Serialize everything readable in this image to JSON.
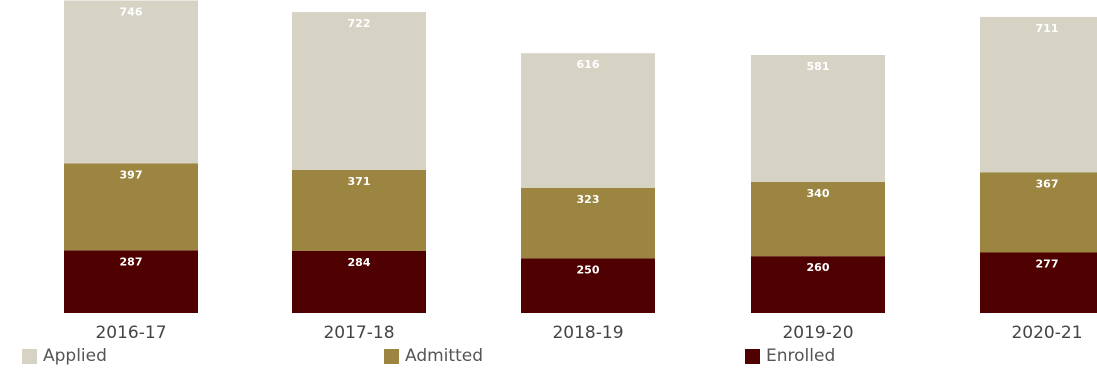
{
  "chart_data": {
    "type": "bar",
    "stacked": true,
    "categories": [
      "2016-17",
      "2017-18",
      "2018-19",
      "2019-20",
      "2020-21"
    ],
    "series": [
      {
        "name": "Enrolled",
        "values": [
          287,
          284,
          250,
          260,
          277
        ],
        "color": "#4f0000"
      },
      {
        "name": "Admitted",
        "values": [
          397,
          371,
          323,
          340,
          367
        ],
        "color": "#9b8540"
      },
      {
        "name": "Applied",
        "values": [
          746,
          722,
          616,
          581,
          711
        ],
        "color": "#d6d2c4"
      }
    ],
    "title": "",
    "xlabel": "",
    "ylabel": "",
    "legend_position": "bottom",
    "grid": false
  },
  "legend": {
    "items": [
      {
        "label": "Applied",
        "color": "#d6d2c4"
      },
      {
        "label": "Admitted",
        "color": "#9b8540"
      },
      {
        "label": "Enrolled",
        "color": "#4f0000"
      }
    ]
  }
}
